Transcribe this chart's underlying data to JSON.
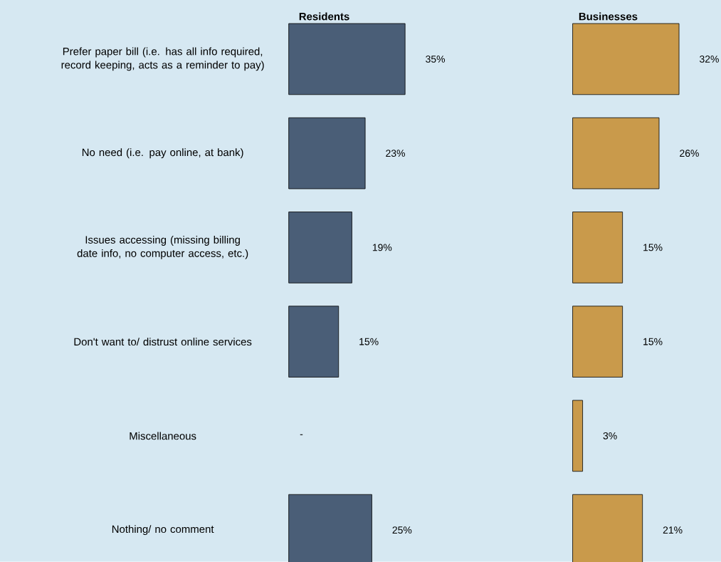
{
  "chart_data": [
    {
      "type": "bar",
      "orientation": "horizontal",
      "title": "Residents",
      "tick_labels": "y",
      "color": "#4a5e77",
      "categories": [
        "Prefer paper bill (i.e. has all info required, record keeping, acts as a reminder to pay)",
        "No need (i.e. pay online, at bank)",
        "Issues accessing (missing billing date info, no computer access, etc.)",
        "Don't want to/ distrust online services",
        "Miscellaneous",
        "Nothing/ no comment"
      ],
      "values": [
        35,
        23,
        19,
        15,
        null,
        25
      ],
      "value_labels": [
        "35%",
        "23%",
        "19%",
        "15%",
        "-",
        "25%"
      ]
    },
    {
      "type": "bar",
      "orientation": "horizontal",
      "title": "Businesses",
      "tick_labels": false,
      "color": "#c99a4b",
      "categories": [
        null,
        null,
        null,
        null,
        null,
        null
      ],
      "values": [
        32,
        26,
        15,
        15,
        3,
        21
      ],
      "value_labels": [
        "32%",
        "26%",
        "15%",
        "15%",
        "3%",
        "21%"
      ]
    }
  ]
}
